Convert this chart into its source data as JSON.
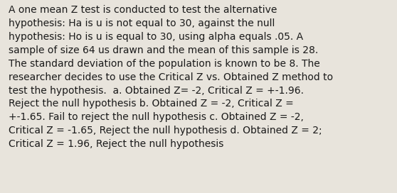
{
  "background_color": "#e8e4dc",
  "text_color": "#1a1a1a",
  "font_family": "DejaVu Sans",
  "font_size": 10.0,
  "line1": "A one mean Z test is conducted to test the alternative",
  "line2": "hypothesis: Ha is u is not equal to 30, against the null",
  "line3": "hypothesis: Ho is u is equal to 30, using alpha equals .05. A",
  "line4": "sample of size 64 us drawn and the mean of this sample is 28.",
  "line5": "The standard deviation of the population is known to be 8. The",
  "line6": "researcher decides to use the Critical Z vs. Obtained Z method to",
  "line7": "test the hypothesis.  a. Obtained Z= -2, Critical Z = +-1.96.",
  "line8": "Reject the null hypothesis b. Obtained Z = -2, Critical Z =",
  "line9": "+-1.65. Fail to reject the null hypothesis c. Obtained Z = -2,",
  "line10": "Critical Z = -1.65, Reject the null hypothesis d. Obtained Z = 2;",
  "line11": "Critical Z = 1.96, Reject the null hypothesis"
}
